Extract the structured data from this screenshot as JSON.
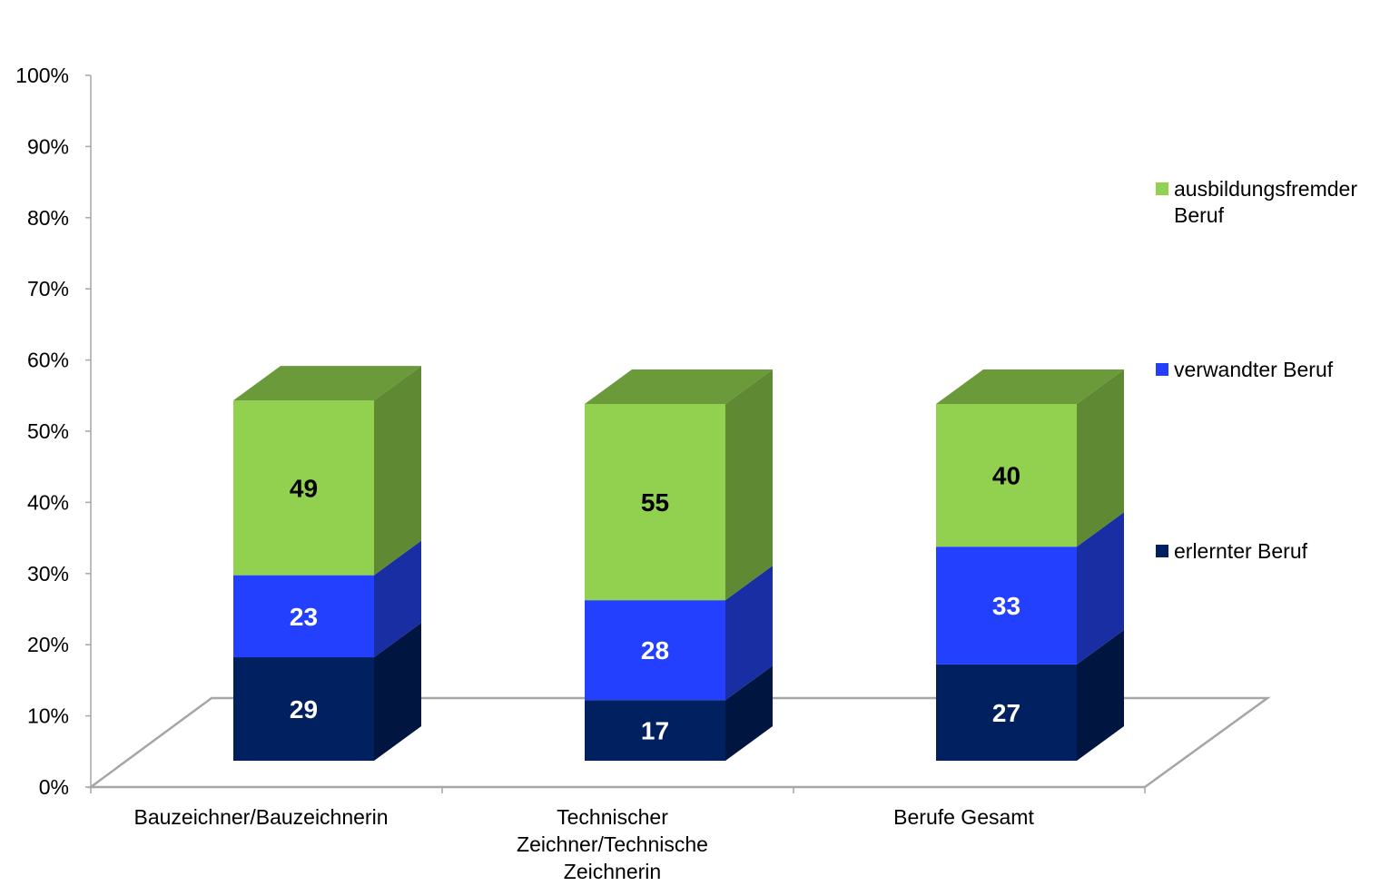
{
  "chart_data": {
    "type": "bar",
    "stacked": true,
    "three_d": true,
    "categories": [
      [
        "Bauzeichner/Bauzeichnerin"
      ],
      [
        "Technischer",
        "Zeichner/Technische",
        "Zeichnerin"
      ],
      [
        "Berufe Gesamt"
      ]
    ],
    "series": [
      {
        "name": "erlernter Beruf",
        "values": [
          29,
          17,
          27
        ],
        "color": "#002060",
        "side_color": "#001640",
        "top_color": "#001a50",
        "label_color": "#ffffff"
      },
      {
        "name": "verwandter Beruf",
        "values": [
          23,
          28,
          33
        ],
        "color": "#2440ff",
        "side_color": "#1a2ea3",
        "top_color": "#1d35c8",
        "label_color": "#ffffff"
      },
      {
        "name": "ausbildungsfremder Beruf",
        "values": [
          49,
          55,
          40
        ],
        "color": "#92d050",
        "side_color": "#5f8a33",
        "top_color": "#6b9a3a",
        "label_color": "#000000"
      }
    ],
    "legend_order": [
      2,
      1,
      0
    ],
    "legend_lines": [
      [
        "ausbildungsfremder",
        "Beruf"
      ],
      [
        "verwandter Beruf"
      ],
      [
        "erlernter Beruf"
      ]
    ],
    "y_ticks": [
      "0%",
      "10%",
      "20%",
      "30%",
      "40%",
      "50%",
      "60%",
      "70%",
      "80%",
      "90%",
      "100%"
    ],
    "ylim": [
      0,
      100
    ],
    "legend_position": "right",
    "grid": false,
    "title": "",
    "xlabel": "",
    "ylabel": ""
  }
}
